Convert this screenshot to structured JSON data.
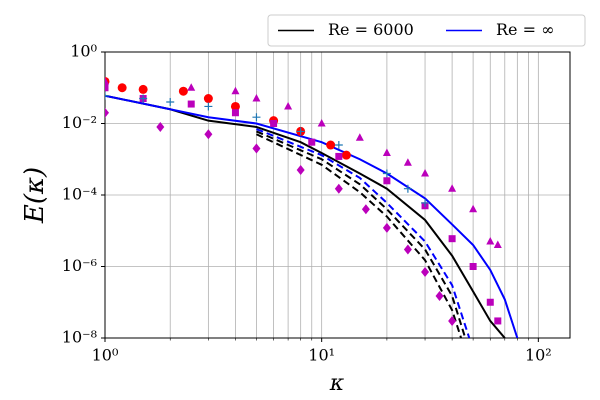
{
  "chart_data": {
    "type": "line",
    "xlabel": "κ",
    "ylabel": "E(κ)",
    "xscale": "log",
    "yscale": "log",
    "xlim": [
      1,
      140
    ],
    "ylim": [
      1e-08,
      1
    ],
    "xticks": [
      {
        "value": 1,
        "label": "10⁰"
      },
      {
        "value": 10,
        "label": "10¹"
      },
      {
        "value": 100,
        "label": "10²"
      }
    ],
    "xminor": [
      2,
      3,
      4,
      5,
      6,
      7,
      8,
      9,
      20,
      30,
      40,
      50,
      60,
      70,
      80,
      90
    ],
    "yticks": [
      {
        "value": 1e-08,
        "label": "10⁻⁸"
      },
      {
        "value": 1e-06,
        "label": "10⁻⁶"
      },
      {
        "value": 0.0001,
        "label": "10⁻⁴"
      },
      {
        "value": 0.01,
        "label": "10⁻²"
      },
      {
        "value": 1,
        "label": "10⁰"
      }
    ],
    "grid": true,
    "legend": "top-right-outside",
    "series": [
      {
        "name": "Re = 6000",
        "color": "#000000",
        "linestyle": "solid",
        "x": [
          1,
          2,
          3,
          5,
          8,
          10,
          15,
          20,
          30,
          40,
          50,
          60,
          70
        ],
        "values": [
          0.06,
          0.025,
          0.012,
          0.008,
          0.003,
          0.0015,
          0.0004,
          0.00015,
          2e-05,
          2e-06,
          2e-07,
          3e-08,
          1e-08
        ]
      },
      {
        "name": "Re = ∞",
        "color": "#0000ff",
        "linestyle": "solid",
        "x": [
          1,
          3,
          5,
          10,
          15,
          20,
          30,
          40,
          50,
          60,
          70,
          80
        ],
        "values": [
          0.06,
          0.015,
          0.01,
          0.003,
          0.001,
          0.0004,
          8e-05,
          1.5e-05,
          4e-06,
          8e-07,
          1.2e-07,
          1e-08
        ]
      },
      {
        "color": "#000000",
        "linestyle": "dashed",
        "x": [
          5,
          10,
          15,
          20,
          30,
          40,
          46
        ],
        "values": [
          0.006,
          0.001,
          0.0002,
          4e-05,
          3e-06,
          1.5e-07,
          1e-08
        ]
      },
      {
        "color": "#000000",
        "linestyle": "dashed",
        "x": [
          5,
          10,
          15,
          20,
          30,
          40,
          44
        ],
        "values": [
          0.005,
          0.0007,
          0.00012,
          2.5e-05,
          1.5e-06,
          6e-08,
          1e-08
        ]
      },
      {
        "color": "#0000ff",
        "linestyle": "dashed",
        "x": [
          5,
          10,
          15,
          20,
          30,
          40,
          48
        ],
        "values": [
          0.007,
          0.0013,
          0.0003,
          6e-05,
          5e-06,
          3e-07,
          1e-08
        ]
      },
      {
        "color": "#ff0000",
        "marker": "circle",
        "x": [
          1,
          1.2,
          1.5,
          2.3,
          3,
          4,
          6,
          8,
          11,
          13
        ],
        "values": [
          0.15,
          0.1,
          0.09,
          0.08,
          0.05,
          0.03,
          0.012,
          0.006,
          0.0025,
          0.0013
        ]
      },
      {
        "color": "#bb00bb",
        "marker": "triangle",
        "x": [
          1,
          2.5,
          4,
          5,
          7,
          10,
          15,
          20,
          25,
          30,
          40,
          50,
          60,
          65
        ],
        "values": [
          0.15,
          0.1,
          0.08,
          0.05,
          0.03,
          0.01,
          0.004,
          0.0015,
          0.0008,
          0.0004,
          0.00015,
          4e-05,
          5e-06,
          4e-06
        ]
      },
      {
        "color": "#bb00bb",
        "marker": "square",
        "x": [
          1,
          1.5,
          2.5,
          4,
          6,
          9,
          12,
          20,
          30,
          40,
          50,
          60,
          65
        ],
        "values": [
          0.1,
          0.05,
          0.035,
          0.02,
          0.01,
          0.003,
          0.0012,
          0.00025,
          5e-05,
          6e-06,
          1e-06,
          1e-07,
          3e-08
        ]
      },
      {
        "color": "#bb00bb",
        "marker": "diamond",
        "x": [
          1,
          1.8,
          3,
          5,
          8,
          12,
          16,
          20,
          25,
          30,
          35,
          40
        ],
        "values": [
          0.02,
          0.008,
          0.005,
          0.002,
          0.0005,
          0.00015,
          4e-05,
          1.2e-05,
          3e-06,
          7e-07,
          1.5e-07,
          3e-08
        ]
      },
      {
        "color": "#1f77b4",
        "marker": "plus",
        "x": [
          1,
          1.5,
          2,
          3,
          5,
          8,
          12,
          20,
          25,
          30
        ],
        "values": [
          0.06,
          0.05,
          0.04,
          0.03,
          0.015,
          0.006,
          0.0025,
          0.0004,
          0.00015,
          6e-05
        ]
      }
    ]
  }
}
